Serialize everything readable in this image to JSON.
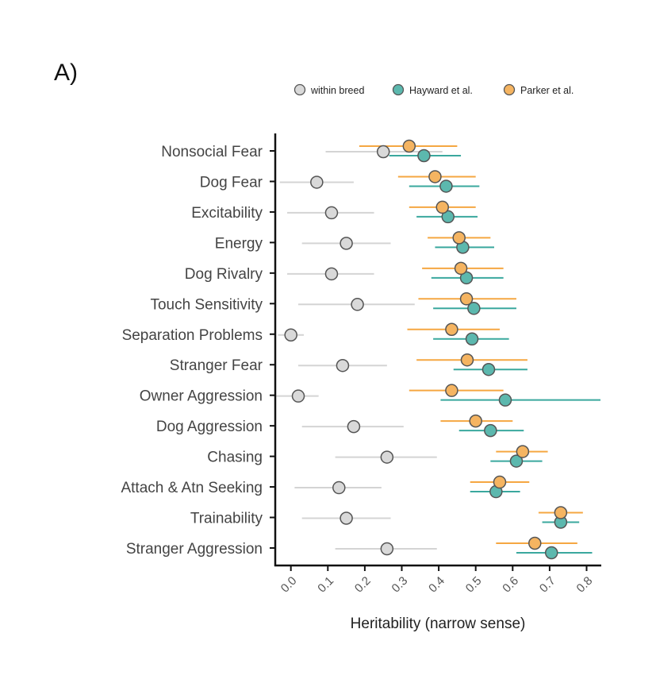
{
  "panel_label": "A)",
  "chart_data": {
    "type": "scatter",
    "subtype": "point-range (dot plot with confidence intervals)",
    "xlabel": "Heritability (narrow sense)",
    "ylabel": "",
    "xlim": [
      -0.045,
      0.84
    ],
    "xticks": [
      "0.0",
      "0.1",
      "0.2",
      "0.3",
      "0.4",
      "0.5",
      "0.6",
      "0.7",
      "0.8"
    ],
    "grid": false,
    "legend_position": "top",
    "categories": [
      "Nonsocial Fear",
      "Dog Fear",
      "Excitability",
      "Energy",
      "Dog Rivalry",
      "Touch Sensitivity",
      "Separation Problems",
      "Stranger Fear",
      "Owner Aggression",
      "Dog Aggression",
      "Chasing",
      "Attach & Atn Seeking",
      "Trainability",
      "Stranger Aggression"
    ],
    "series": [
      {
        "name": "within breed",
        "color": "#d9d9d9",
        "line_color": "#d4d4d4",
        "values": [
          0.25,
          0.07,
          0.11,
          0.15,
          0.11,
          0.18,
          0.0,
          0.14,
          0.02,
          0.17,
          0.26,
          0.13,
          0.15,
          0.26
        ],
        "lower": [
          0.094,
          -0.03,
          -0.01,
          0.03,
          -0.01,
          0.02,
          -0.035,
          0.02,
          -0.04,
          0.03,
          0.12,
          0.01,
          0.03,
          0.12
        ],
        "upper": [
          0.41,
          0.17,
          0.225,
          0.27,
          0.225,
          0.335,
          0.035,
          0.26,
          0.075,
          0.305,
          0.395,
          0.245,
          0.27,
          0.395
        ]
      },
      {
        "name": "Hayward et al.",
        "color": "#5cb8ae",
        "line_color": "#3aa89e",
        "values": [
          0.36,
          0.42,
          0.425,
          0.465,
          0.475,
          0.495,
          0.49,
          0.535,
          0.58,
          0.54,
          0.61,
          0.555,
          0.73,
          0.705
        ],
        "lower": [
          0.266,
          0.32,
          0.34,
          0.39,
          0.38,
          0.385,
          0.385,
          0.44,
          0.405,
          0.455,
          0.54,
          0.485,
          0.68,
          0.61
        ],
        "upper": [
          0.46,
          0.51,
          0.505,
          0.55,
          0.575,
          0.61,
          0.59,
          0.64,
          0.84,
          0.63,
          0.68,
          0.62,
          0.78,
          0.815
        ]
      },
      {
        "name": "Parker et al.",
        "color": "#f5b461",
        "line_color": "#f5a742",
        "values": [
          0.32,
          0.39,
          0.41,
          0.455,
          0.46,
          0.475,
          0.435,
          0.477,
          0.435,
          0.5,
          0.627,
          0.565,
          0.73,
          0.66
        ],
        "lower": [
          0.185,
          0.29,
          0.32,
          0.37,
          0.355,
          0.345,
          0.315,
          0.34,
          0.32,
          0.405,
          0.555,
          0.485,
          0.67,
          0.555
        ],
        "upper": [
          0.45,
          0.5,
          0.5,
          0.54,
          0.575,
          0.61,
          0.565,
          0.64,
          0.575,
          0.6,
          0.695,
          0.645,
          0.79,
          0.775
        ]
      }
    ]
  }
}
